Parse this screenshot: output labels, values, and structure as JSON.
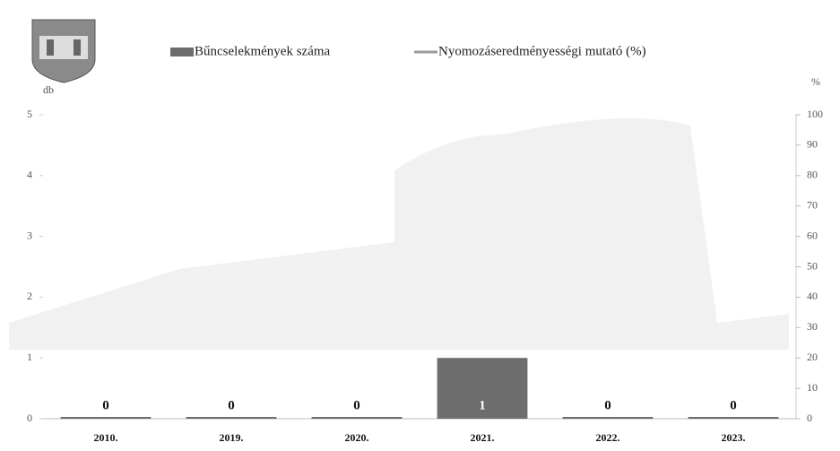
{
  "chart_data": {
    "type": "bar",
    "categories": [
      "2010.",
      "2019.",
      "2020.",
      "2021.",
      "2022.",
      "2023."
    ],
    "series": [
      {
        "name": "Bűncselekmények száma",
        "type": "bar",
        "color": "#6d6d6d",
        "values": [
          0,
          0,
          0,
          1,
          0,
          0
        ]
      },
      {
        "name": "Nyomozáseredményességi mutató (%)",
        "type": "line",
        "axis": "y2",
        "color": "#9a9a9a",
        "values": [
          null,
          null,
          null,
          null,
          null,
          null
        ]
      }
    ],
    "y_label": "db",
    "y2_label": "%",
    "ylim": [
      0,
      5
    ],
    "yticks": [
      0,
      1,
      2,
      3,
      4,
      5
    ],
    "y2lim": [
      0,
      100
    ],
    "y2ticks": [
      0,
      10,
      20,
      30,
      40,
      50,
      60,
      70,
      80,
      90,
      100
    ],
    "legend": "top"
  }
}
